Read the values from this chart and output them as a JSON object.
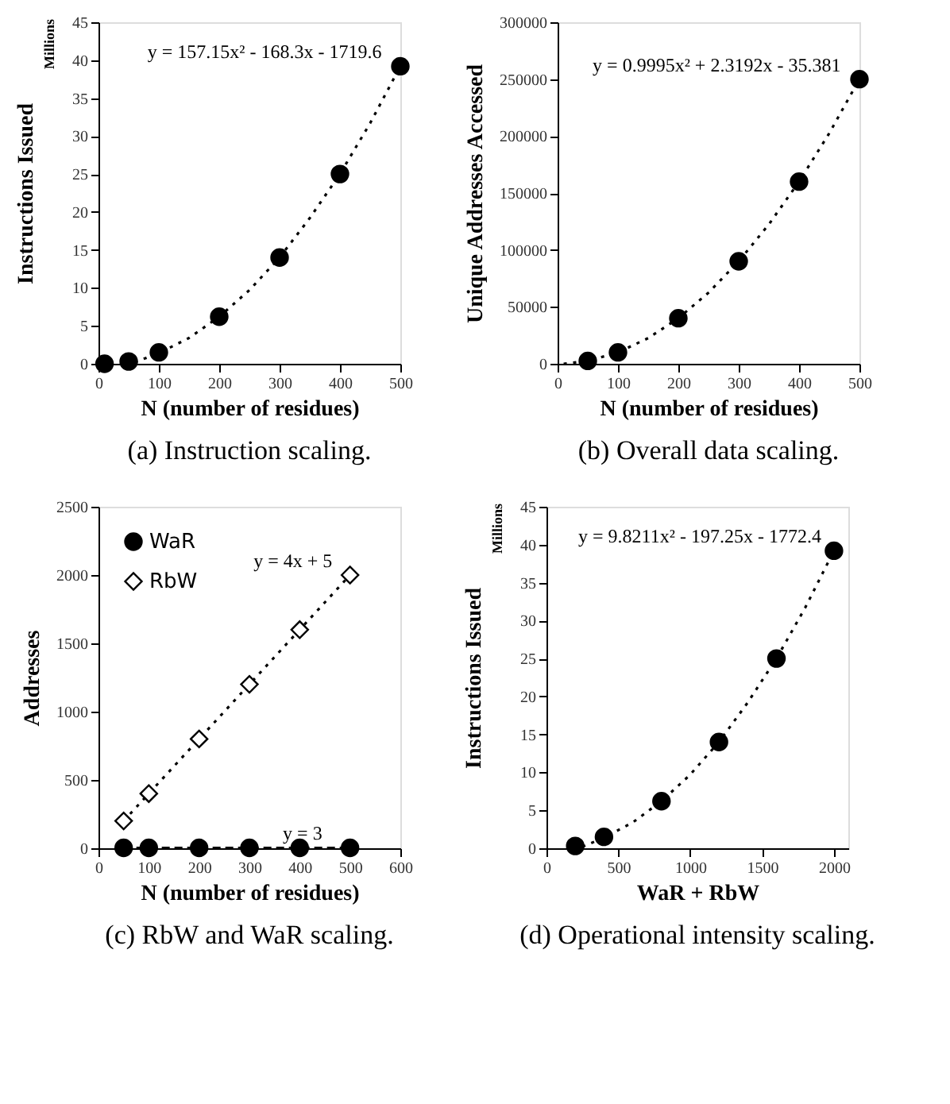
{
  "chart_data": [
    {
      "type": "scatter",
      "title": "(a) Instruction scaling.",
      "xlabel": "N (number of residues)",
      "ylabel": "Instructions Issued",
      "xlim": [
        0,
        500
      ],
      "xticks": [
        0,
        100,
        200,
        300,
        400,
        500
      ],
      "ylim": [
        0,
        45
      ],
      "yticks": [
        0,
        5,
        10,
        15,
        20,
        25,
        30,
        35,
        40,
        45
      ],
      "grid": false,
      "legend": false,
      "marker": "circle",
      "annotations": [
        "Millions",
        {
          "text": "y = 157.15x² - 168.3x - 1719.6",
          "x": 490,
          "y": 39.2
        }
      ],
      "series": [
        {
          "color": "#000000",
          "x": [
            10,
            50,
            100,
            200,
            300,
            400,
            500
          ],
          "values": [
            0,
            0.3,
            1.5,
            6.2,
            14,
            25,
            39.2
          ]
        },
        {
          "type": "line",
          "marker": "none",
          "line_style": "dotted",
          "color": "#000000",
          "x": [
            60,
            100,
            150,
            200,
            250,
            300,
            350,
            400,
            450,
            500
          ],
          "values": [
            0.2,
            1.4,
            3.4,
            6.2,
            9.7,
            14,
            19.2,
            25,
            31.7,
            39.2
          ]
        }
      ]
    },
    {
      "type": "scatter",
      "title": "(b) Overall data scaling.",
      "xlabel": "N (number of residues)",
      "ylabel": "Unique Addresses Accessed",
      "xlim": [
        0,
        500
      ],
      "xticks": [
        0,
        100,
        200,
        300,
        400,
        500
      ],
      "ylim": [
        0,
        300000
      ],
      "yticks": [
        0,
        50000,
        100000,
        150000,
        200000,
        250000,
        300000
      ],
      "grid": false,
      "legend": false,
      "marker": "circle",
      "annotations": [
        {
          "text": "y = 0.9995x² + 2.3192x - 35.381",
          "x": 490,
          "y": 250000
        }
      ],
      "series": [
        {
          "color": "#000000",
          "x": [
            50,
            100,
            200,
            300,
            400,
            500
          ],
          "values": [
            2500,
            10000,
            40000,
            90000,
            160000,
            250000
          ]
        },
        {
          "type": "line",
          "marker": "none",
          "line_style": "dotted",
          "color": "#000000",
          "x": [
            10,
            50,
            100,
            150,
            200,
            250,
            300,
            350,
            400,
            450,
            500
          ],
          "values": [
            0,
            2500,
            10000,
            22500,
            40000,
            62500,
            90000,
            122500,
            160000,
            202500,
            250000
          ]
        }
      ]
    },
    {
      "type": "scatter",
      "title": "(c) RbW and WaR scaling.",
      "xlabel": "N (number of residues)",
      "ylabel": "Addresses",
      "xlim": [
        0,
        600
      ],
      "xticks": [
        0,
        100,
        200,
        300,
        400,
        500,
        600
      ],
      "ylim": [
        0,
        2500
      ],
      "yticks": [
        0,
        500,
        1000,
        1500,
        2000,
        2500
      ],
      "grid": false,
      "legend": "top left",
      "annotations": [
        {
          "text": "y = 4x + 5",
          "x": 490,
          "y": 2000
        },
        {
          "text": "y = 3",
          "x": 470,
          "y": 3
        }
      ],
      "series": [
        {
          "name": "WaR",
          "marker": "circle",
          "color": "#000000",
          "x": [
            50,
            100,
            200,
            300,
            400,
            500
          ],
          "values": [
            3,
            3,
            3,
            3,
            3,
            3
          ]
        },
        {
          "name": "RbW",
          "marker": "diamond",
          "color": "#000000",
          "x": [
            50,
            100,
            200,
            300,
            400,
            500
          ],
          "values": [
            200,
            400,
            800,
            1200,
            1600,
            2000
          ]
        },
        {
          "type": "line",
          "marker": "none",
          "line_style": "dotted",
          "color": "#000000",
          "x": [
            50,
            500
          ],
          "values": [
            200,
            2000
          ]
        },
        {
          "type": "line",
          "marker": "none",
          "line_style": "dashed",
          "color": "#000000",
          "x": [
            50,
            500
          ],
          "values": [
            3,
            3
          ]
        }
      ]
    },
    {
      "type": "scatter",
      "title": "(d) Operational intensity scaling.",
      "xlabel": "WaR + RbW",
      "ylabel": "Instructions Issued",
      "xlim": [
        0,
        2100
      ],
      "xticks": [
        0,
        500,
        1000,
        1500,
        2000
      ],
      "ylim": [
        0,
        45
      ],
      "yticks": [
        0,
        5,
        10,
        15,
        20,
        25,
        30,
        35,
        40,
        45
      ],
      "grid": false,
      "legend": false,
      "marker": "circle",
      "annotations": [
        "Millions",
        {
          "text": "y = 9.8211x² - 197.25x - 1772.4",
          "x": 2000,
          "y": 39.2
        }
      ],
      "series": [
        {
          "color": "#000000",
          "x": [
            200,
            400,
            800,
            1200,
            1600,
            2000
          ],
          "values": [
            0.3,
            1.5,
            6.2,
            14,
            25,
            39.2
          ]
        },
        {
          "type": "line",
          "marker": "none",
          "line_style": "dotted",
          "color": "#000000",
          "x": [
            250,
            400,
            600,
            800,
            1000,
            1200,
            1400,
            1600,
            1800,
            2000
          ],
          "values": [
            0.2,
            1.4,
            3.4,
            6.2,
            9.7,
            14,
            19.2,
            25,
            31.7,
            39.2
          ]
        }
      ]
    }
  ]
}
